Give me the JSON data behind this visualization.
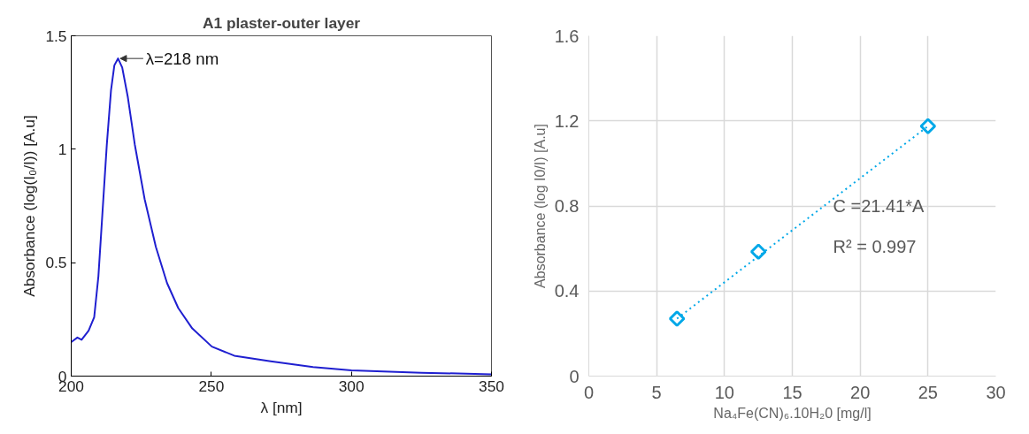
{
  "chart_data": [
    {
      "type": "line",
      "title": "A1 plaster-outer layer",
      "xlabel": "λ [nm]",
      "ylabel": "Absorbance (log(I₀/I)) [A.u]",
      "xlim": [
        200,
        350
      ],
      "ylim": [
        0,
        1.5
      ],
      "xticks": [
        200,
        250,
        300,
        350
      ],
      "yticks": [
        0,
        0.5,
        1,
        1.5
      ],
      "grid": false,
      "series": [
        {
          "color": "#1f1fd0",
          "x": [
            200,
            202.2,
            203.7,
            206.2,
            208.2,
            209.7,
            211.2,
            212.7,
            214.2,
            215.4,
            216.7,
            218.2,
            220.2,
            222.7,
            226.2,
            230.2,
            234.2,
            238.2,
            243.2,
            250.2,
            258.2,
            271.2,
            286.3,
            300,
            325,
            350
          ],
          "values": [
            0.15,
            0.17,
            0.16,
            0.2,
            0.26,
            0.44,
            0.73,
            1.02,
            1.26,
            1.37,
            1.4,
            1.36,
            1.23,
            1.02,
            0.78,
            0.57,
            0.41,
            0.3,
            0.21,
            0.13,
            0.09,
            0.065,
            0.04,
            0.025,
            0.015,
            0.008
          ]
        }
      ],
      "annotations": [
        {
          "text": "λ=218 nm",
          "x": 216.7,
          "y": 1.4
        }
      ]
    },
    {
      "type": "scatter",
      "xlabel": "Na₄Fe(CN)₆.10H₂0 [mg/l]",
      "ylabel": "Absorbance (log I0/I) [A.u]",
      "xlim": [
        0,
        30
      ],
      "ylim": [
        0,
        1.6
      ],
      "xticks": [
        0,
        5,
        10,
        15,
        20,
        25,
        30
      ],
      "yticks": [
        0,
        0.4,
        0.8,
        1.2,
        1.6
      ],
      "grid": true,
      "series": [
        {
          "type": "scatter",
          "marker": "diamond",
          "color": "#00a8e8",
          "x": [
            6.5,
            12.5,
            25
          ],
          "values": [
            0.27,
            0.585,
            1.175
          ]
        },
        {
          "type": "line",
          "marker": "none",
          "line_style": "dotted",
          "color": "#00a8e8",
          "x": [
            6.5,
            25
          ],
          "values": [
            0.27,
            1.175
          ]
        }
      ],
      "annotations": [
        "C =21.41*A",
        "R² = 0.997"
      ]
    }
  ]
}
